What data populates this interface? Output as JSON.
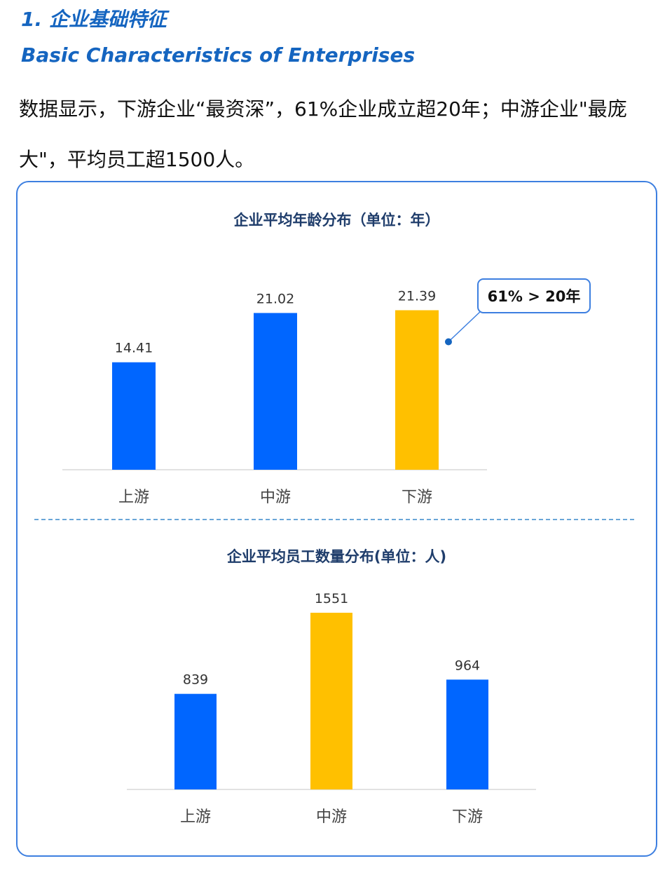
{
  "section": {
    "title": "1.   企业基础特征",
    "subtitle": "Basic Characteristics  of Enterprises"
  },
  "intro_text": "数据显示，下游企业“最资深”，61%企业成立超20年；中游企业\"最庞大\"，平均员工超1500人。",
  "colors": {
    "blue": "#0066ff",
    "yellow": "#ffc000",
    "accent": "#1565c0"
  },
  "chart_data": [
    {
      "type": "bar",
      "title": "企业平均年龄分布（单位：年）",
      "categories": [
        "上游",
        "中游",
        "下游"
      ],
      "values": [
        14.41,
        21.02,
        21.39
      ],
      "value_labels": [
        "14.41",
        "21.02",
        "21.39"
      ],
      "highlight_index": 2,
      "callout": {
        "text": "61% > 20年",
        "target_index": 2
      },
      "xlabel": "",
      "ylabel": "",
      "ylim": [
        0,
        22
      ],
      "grid": false
    },
    {
      "type": "bar",
      "title": "企业平均员工数量分布(单位：人)",
      "categories": [
        "上游",
        "中游",
        "下游"
      ],
      "values": [
        839,
        1551,
        964
      ],
      "value_labels": [
        "839",
        "1551",
        "964"
      ],
      "highlight_index": 1,
      "xlabel": "",
      "ylabel": "",
      "ylim": [
        0,
        1600
      ],
      "grid": false
    }
  ]
}
